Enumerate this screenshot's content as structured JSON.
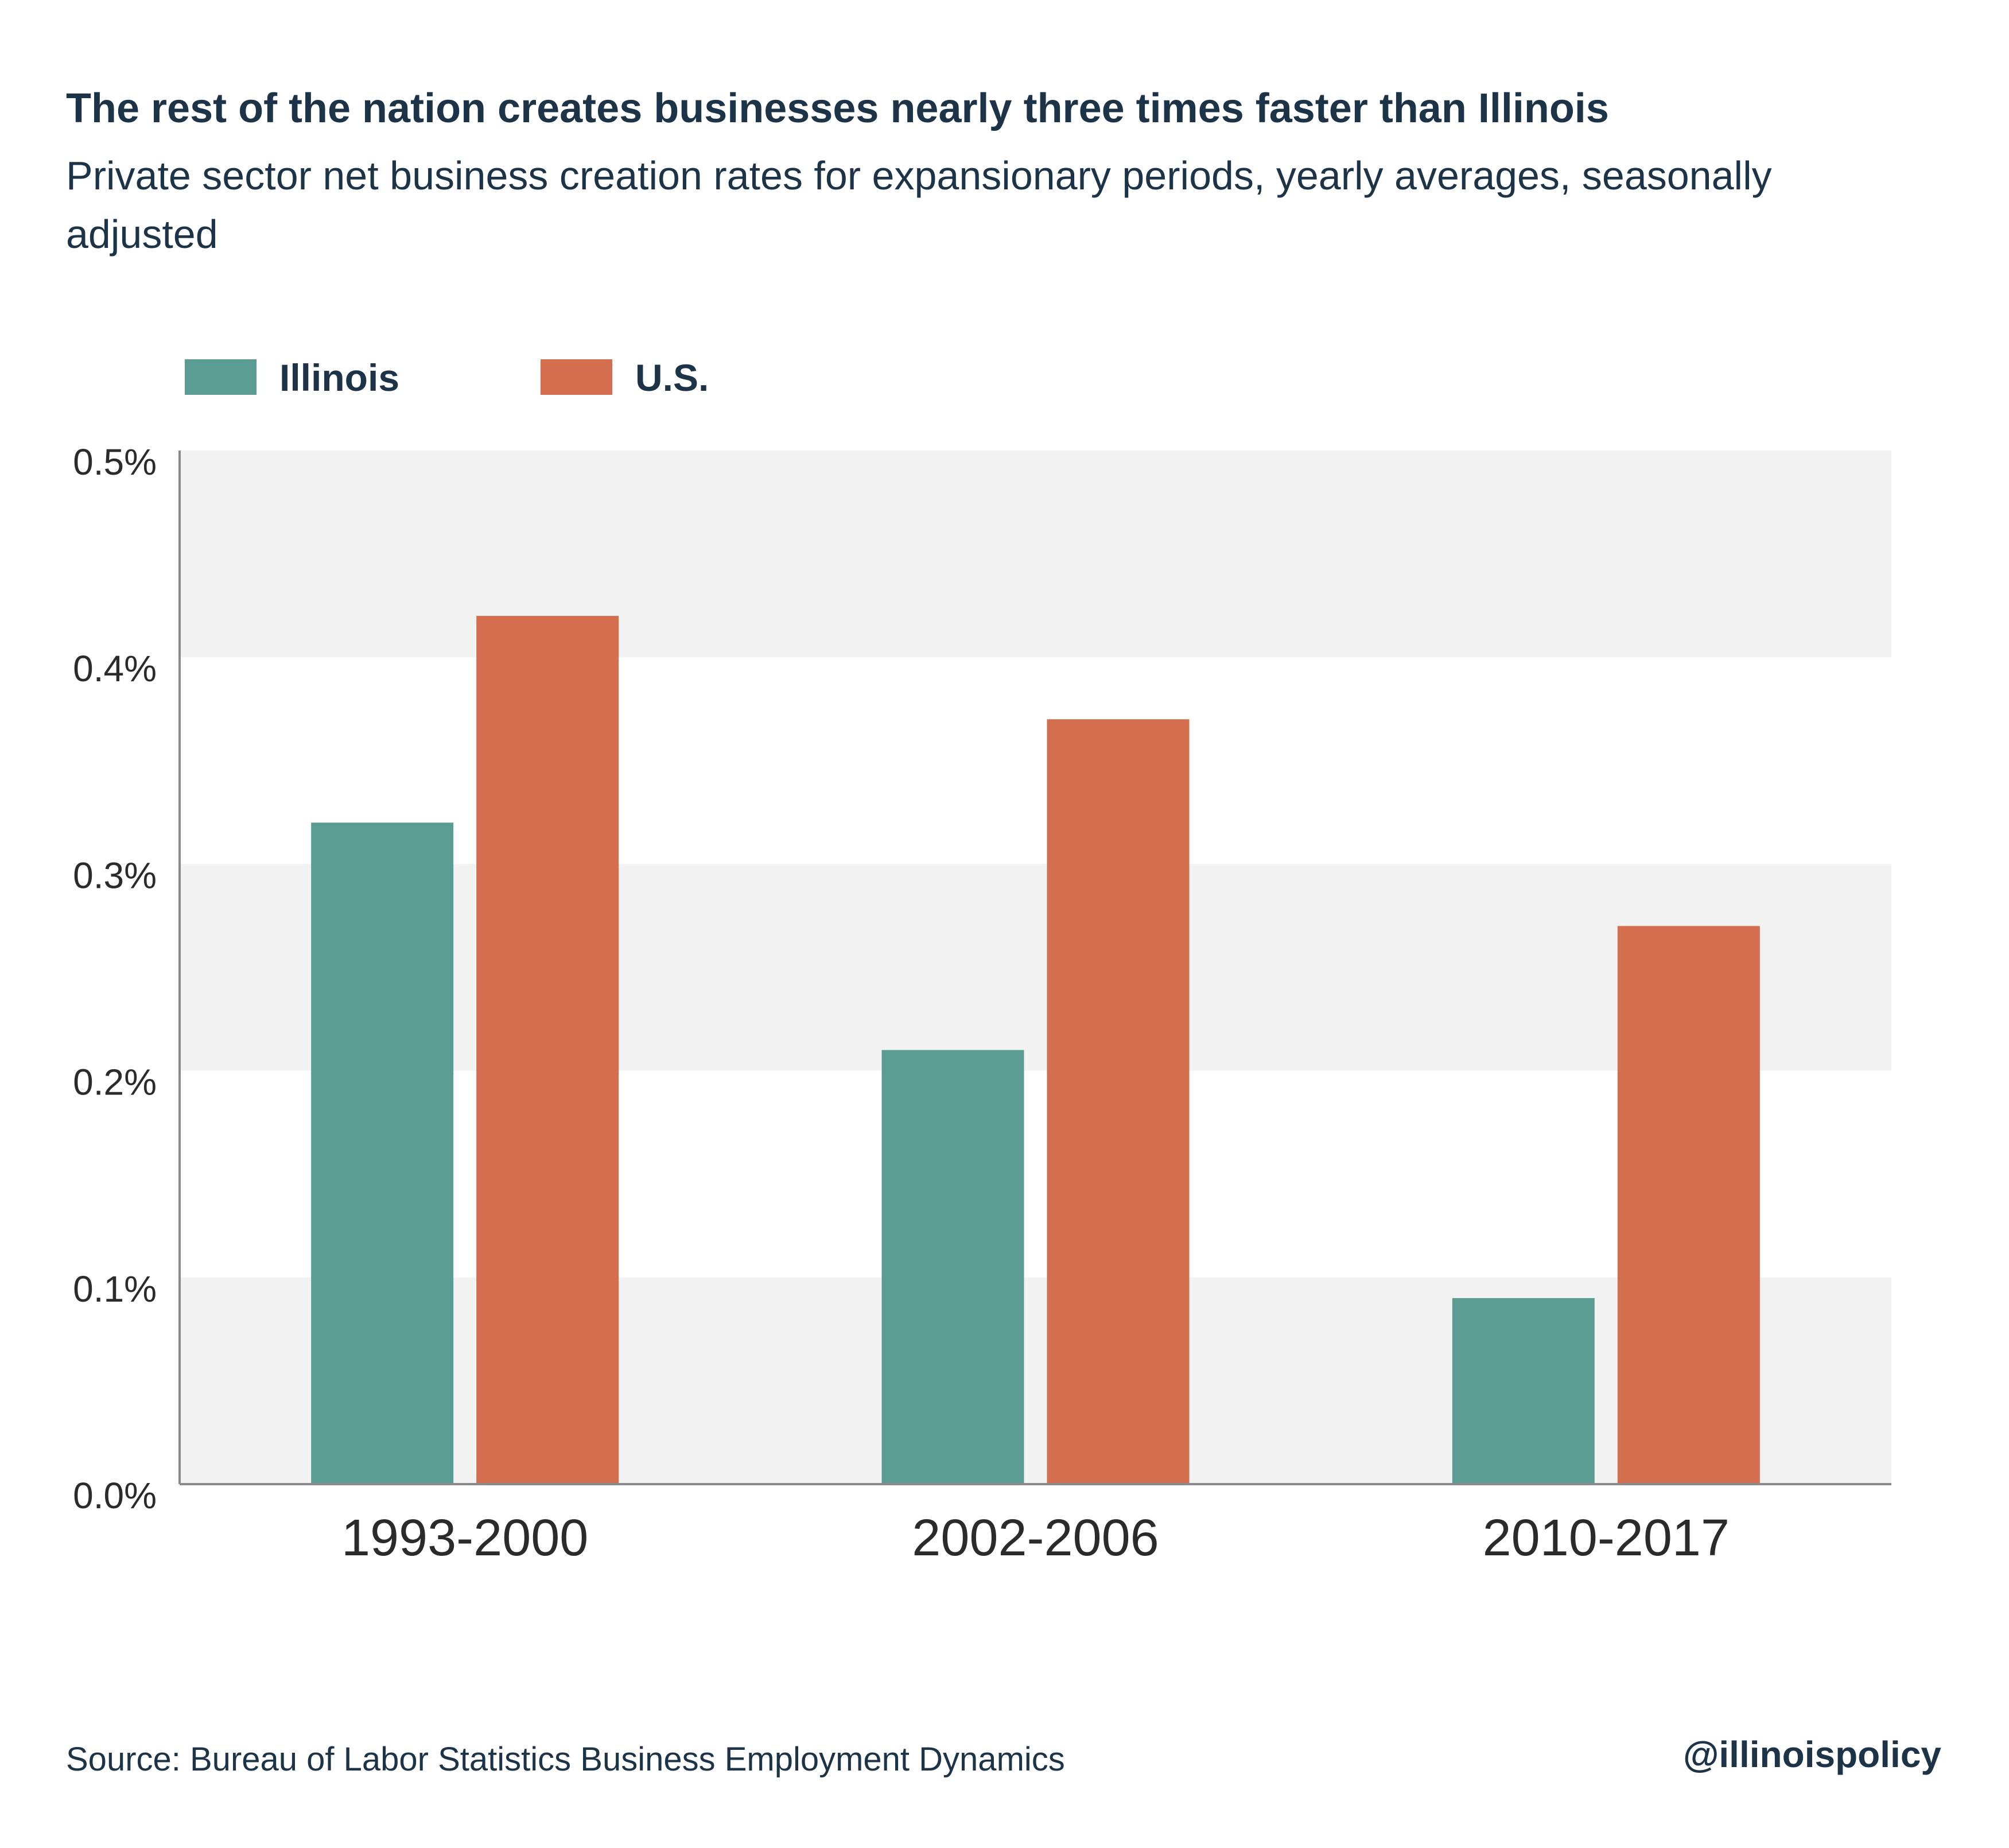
{
  "header": {
    "title": "The rest of the nation creates businesses nearly three times faster than Illinois",
    "subtitle": "Private sector net business creation rates for expansionary periods, yearly averages, seasonally adjusted"
  },
  "legend": [
    {
      "label": "Illinois",
      "color": "#5a9c92"
    },
    {
      "label": "U.S.",
      "color": "#d36f4e"
    }
  ],
  "footer": {
    "source": "Source: Bureau of Labor Statistics Business Employment Dynamics",
    "handle": "@illinoispolicy"
  },
  "colors": {
    "band": "#f2f2f2",
    "axis": "#8a8a8a",
    "text": "#1d3448",
    "tick_text": "#2b2b2b"
  },
  "chart_data": {
    "type": "bar",
    "categories": [
      "1993-2000",
      "2002-2006",
      "2010-2017"
    ],
    "series": [
      {
        "name": "Illinois",
        "values": [
          0.32,
          0.21,
          0.09
        ]
      },
      {
        "name": "U.S.",
        "values": [
          0.42,
          0.37,
          0.27
        ]
      }
    ],
    "y_ticks": [
      {
        "value": 0.0,
        "label": "0.0%"
      },
      {
        "value": 0.1,
        "label": "0.1%"
      },
      {
        "value": 0.2,
        "label": "0.2%"
      },
      {
        "value": 0.3,
        "label": "0.3%"
      },
      {
        "value": 0.4,
        "label": "0.4%"
      },
      {
        "value": 0.5,
        "label": "0.5%"
      }
    ],
    "ylim": [
      0,
      0.5
    ],
    "grid": "alternating bands",
    "legend_position": "top-left"
  }
}
